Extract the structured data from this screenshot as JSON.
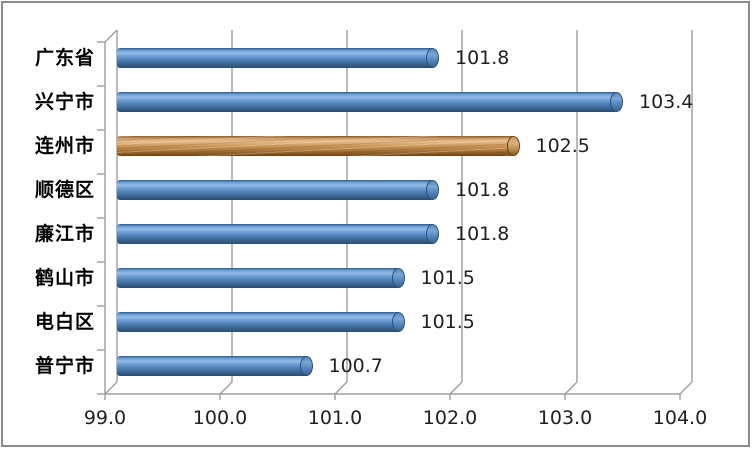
{
  "frame": {
    "border_color": "#8c8c8c",
    "background": "#ffffff"
  },
  "chart_data": {
    "type": "bar",
    "orientation": "horizontal",
    "style": "3d-cylinder",
    "title": "",
    "xlabel": "",
    "ylabel": "",
    "legend": "none",
    "grid": true,
    "gridline_color": "#9d9d9d",
    "categories": [
      "广东省",
      "兴宁市",
      "连州市",
      "顺德区",
      "廉江市",
      "鹤山市",
      "电白区",
      "普宁市"
    ],
    "values": [
      101.8,
      103.4,
      102.5,
      101.8,
      101.8,
      101.5,
      101.5,
      100.7
    ],
    "data_labels": [
      "101.8",
      "103.4",
      "102.5",
      "101.8",
      "101.8",
      "101.5",
      "101.5",
      "100.7"
    ],
    "highlight_index": 2,
    "bar_color": "#4f81bd",
    "highlight_color": "#c0834f",
    "xlim": [
      99.0,
      104.0
    ],
    "x_tick_step": 1.0,
    "x_tick_labels": [
      "99.0",
      "100.0",
      "101.0",
      "102.0",
      "103.0",
      "104.0"
    ]
  }
}
